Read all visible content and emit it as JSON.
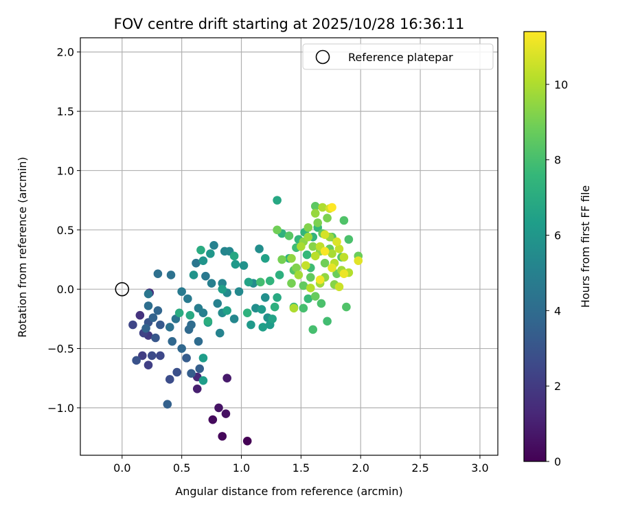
{
  "chart_data": {
    "type": "scatter",
    "title": "FOV centre drift starting at 2025/10/28 16:36:11",
    "xlabel": "Angular distance from reference (arcmin)",
    "ylabel": "Rotation from reference (arcmin)",
    "xlim": [
      -0.35,
      3.15
    ],
    "ylim": [
      -1.4,
      2.12
    ],
    "xticks": [
      "0.0",
      "0.5",
      "1.0",
      "1.5",
      "2.0",
      "2.5",
      "3.0"
    ],
    "xtick_values": [
      0,
      0.5,
      1.0,
      1.5,
      2.0,
      2.5,
      3.0
    ],
    "yticks": [
      "−1.0",
      "−0.5",
      "0.0",
      "0.5",
      "1.0",
      "1.5",
      "2.0"
    ],
    "ytick_values": [
      -1.0,
      -0.5,
      0,
      0.5,
      1.0,
      1.5,
      2.0
    ],
    "grid": true,
    "legend": {
      "label": "Reference platepar",
      "position": "top-right"
    },
    "reference_point": {
      "x": 0.0,
      "y": 0.0
    },
    "colorbar": {
      "label": "Hours from first FF file",
      "min": 0,
      "max": 11.4,
      "ticks": [
        "0",
        "2",
        "4",
        "6",
        "8",
        "10"
      ],
      "tick_values": [
        0,
        2,
        4,
        6,
        8,
        10
      ],
      "colormap": "viridis",
      "colors": [
        "#440154",
        "#482878",
        "#3e4989",
        "#31688e",
        "#26828e",
        "#1f9e89",
        "#35b779",
        "#6ece58",
        "#b5de2b",
        "#fde725"
      ]
    },
    "points": [
      {
        "x": 1.05,
        "y": -1.28,
        "c": 0.0
      },
      {
        "x": 0.84,
        "y": -1.24,
        "c": 0.2
      },
      {
        "x": 0.76,
        "y": -1.1,
        "c": 0.3
      },
      {
        "x": 0.87,
        "y": -1.05,
        "c": 0.5
      },
      {
        "x": 0.81,
        "y": -1.0,
        "c": 0.6
      },
      {
        "x": 0.88,
        "y": -0.75,
        "c": 0.8
      },
      {
        "x": 0.63,
        "y": -0.84,
        "c": 1.0
      },
      {
        "x": 0.63,
        "y": -0.74,
        "c": 1.3
      },
      {
        "x": 0.23,
        "y": -0.03,
        "c": 1.5
      },
      {
        "x": 0.15,
        "y": -0.22,
        "c": 1.7
      },
      {
        "x": 0.22,
        "y": -0.39,
        "c": 1.9
      },
      {
        "x": 0.17,
        "y": -0.56,
        "c": 2.1
      },
      {
        "x": 0.22,
        "y": -0.64,
        "c": 2.2
      },
      {
        "x": 0.18,
        "y": -0.37,
        "c": 2.3
      },
      {
        "x": 0.09,
        "y": -0.3,
        "c": 2.4
      },
      {
        "x": 0.32,
        "y": -0.56,
        "c": 2.5
      },
      {
        "x": 0.25,
        "y": -0.56,
        "c": 2.6
      },
      {
        "x": 0.4,
        "y": -0.76,
        "c": 2.7
      },
      {
        "x": 0.46,
        "y": -0.7,
        "c": 2.8
      },
      {
        "x": 0.12,
        "y": -0.6,
        "c": 2.9
      },
      {
        "x": 0.22,
        "y": -0.28,
        "c": 3.0
      },
      {
        "x": 0.28,
        "y": -0.41,
        "c": 3.1
      },
      {
        "x": 0.32,
        "y": -0.3,
        "c": 3.2
      },
      {
        "x": 0.54,
        "y": -0.58,
        "c": 3.3
      },
      {
        "x": 0.65,
        "y": -0.67,
        "c": 3.4
      },
      {
        "x": 0.58,
        "y": -0.71,
        "c": 3.4
      },
      {
        "x": 0.38,
        "y": -0.97,
        "c": 3.5
      },
      {
        "x": 0.2,
        "y": -0.33,
        "c": 3.6
      },
      {
        "x": 0.26,
        "y": -0.24,
        "c": 3.6
      },
      {
        "x": 0.3,
        "y": -0.18,
        "c": 3.7
      },
      {
        "x": 0.42,
        "y": -0.44,
        "c": 3.8
      },
      {
        "x": 0.5,
        "y": -0.5,
        "c": 3.8
      },
      {
        "x": 0.56,
        "y": -0.34,
        "c": 3.9
      },
      {
        "x": 0.58,
        "y": -0.3,
        "c": 4.0
      },
      {
        "x": 0.64,
        "y": -0.44,
        "c": 4.0
      },
      {
        "x": 0.22,
        "y": -0.14,
        "c": 4.1
      },
      {
        "x": 0.3,
        "y": 0.13,
        "c": 4.2
      },
      {
        "x": 0.41,
        "y": 0.12,
        "c": 4.3
      },
      {
        "x": 0.4,
        "y": -0.32,
        "c": 4.3
      },
      {
        "x": 0.45,
        "y": -0.25,
        "c": 4.4
      },
      {
        "x": 0.22,
        "y": -0.04,
        "c": 4.5
      },
      {
        "x": 0.62,
        "y": 0.22,
        "c": 4.5
      },
      {
        "x": 0.7,
        "y": 0.11,
        "c": 4.6
      },
      {
        "x": 0.5,
        "y": -0.02,
        "c": 4.7
      },
      {
        "x": 0.55,
        "y": -0.08,
        "c": 4.7
      },
      {
        "x": 0.64,
        "y": -0.16,
        "c": 4.8
      },
      {
        "x": 0.68,
        "y": -0.2,
        "c": 4.9
      },
      {
        "x": 0.75,
        "y": 0.05,
        "c": 4.9
      },
      {
        "x": 0.77,
        "y": 0.37,
        "c": 5.0
      },
      {
        "x": 0.8,
        "y": -0.12,
        "c": 5.0
      },
      {
        "x": 0.82,
        "y": -0.37,
        "c": 5.1
      },
      {
        "x": 0.84,
        "y": 0.05,
        "c": 5.2
      },
      {
        "x": 0.86,
        "y": 0.32,
        "c": 5.2
      },
      {
        "x": 0.9,
        "y": 0.32,
        "c": 5.3
      },
      {
        "x": 0.94,
        "y": -0.25,
        "c": 5.3
      },
      {
        "x": 0.98,
        "y": -0.02,
        "c": 5.4
      },
      {
        "x": 0.88,
        "y": -0.03,
        "c": 5.4
      },
      {
        "x": 0.84,
        "y": -0.2,
        "c": 5.5
      },
      {
        "x": 1.1,
        "y": 0.05,
        "c": 5.5
      },
      {
        "x": 1.12,
        "y": -0.16,
        "c": 5.6
      },
      {
        "x": 1.15,
        "y": 0.34,
        "c": 5.6
      },
      {
        "x": 1.2,
        "y": -0.07,
        "c": 5.7
      },
      {
        "x": 1.22,
        "y": -0.24,
        "c": 5.8
      },
      {
        "x": 1.02,
        "y": 0.2,
        "c": 5.8
      },
      {
        "x": 0.68,
        "y": 0.24,
        "c": 5.9
      },
      {
        "x": 0.6,
        "y": 0.12,
        "c": 5.9
      },
      {
        "x": 0.74,
        "y": 0.3,
        "c": 6.0
      },
      {
        "x": 0.72,
        "y": -0.28,
        "c": 6.0
      },
      {
        "x": 0.95,
        "y": 0.21,
        "c": 6.1
      },
      {
        "x": 1.08,
        "y": -0.3,
        "c": 6.1
      },
      {
        "x": 1.17,
        "y": -0.17,
        "c": 6.2
      },
      {
        "x": 1.24,
        "y": -0.3,
        "c": 6.2
      },
      {
        "x": 0.68,
        "y": -0.58,
        "c": 6.3
      },
      {
        "x": 0.68,
        "y": -0.77,
        "c": 6.3
      },
      {
        "x": 1.18,
        "y": -0.32,
        "c": 6.4
      },
      {
        "x": 0.84,
        "y": 0.0,
        "c": 6.4
      },
      {
        "x": 0.88,
        "y": -0.18,
        "c": 6.5
      },
      {
        "x": 1.2,
        "y": 0.26,
        "c": 6.5
      },
      {
        "x": 1.26,
        "y": -0.25,
        "c": 6.6
      },
      {
        "x": 1.06,
        "y": 0.06,
        "c": 6.6
      },
      {
        "x": 1.3,
        "y": 0.75,
        "c": 6.8
      },
      {
        "x": 0.94,
        "y": 0.28,
        "c": 6.8
      },
      {
        "x": 1.3,
        "y": -0.07,
        "c": 6.9
      },
      {
        "x": 0.57,
        "y": -0.22,
        "c": 6.9
      },
      {
        "x": 0.48,
        "y": -0.2,
        "c": 7.0
      },
      {
        "x": 0.66,
        "y": 0.33,
        "c": 7.0
      },
      {
        "x": 0.72,
        "y": -0.27,
        "c": 7.1
      },
      {
        "x": 1.32,
        "y": 0.12,
        "c": 7.2
      },
      {
        "x": 1.28,
        "y": -0.15,
        "c": 7.2
      },
      {
        "x": 1.05,
        "y": -0.2,
        "c": 7.3
      },
      {
        "x": 1.4,
        "y": 0.26,
        "c": 7.3
      },
      {
        "x": 1.34,
        "y": 0.47,
        "c": 7.3
      },
      {
        "x": 1.6,
        "y": 0.44,
        "c": 7.4
      },
      {
        "x": 1.24,
        "y": 0.07,
        "c": 7.4
      },
      {
        "x": 1.53,
        "y": 0.48,
        "c": 7.5
      },
      {
        "x": 1.48,
        "y": 0.42,
        "c": 7.5
      },
      {
        "x": 1.55,
        "y": 0.29,
        "c": 7.6
      },
      {
        "x": 1.64,
        "y": 0.52,
        "c": 7.6
      },
      {
        "x": 1.44,
        "y": -0.15,
        "c": 7.7
      },
      {
        "x": 1.56,
        "y": -0.08,
        "c": 7.7
      },
      {
        "x": 1.46,
        "y": 0.35,
        "c": 7.8
      },
      {
        "x": 1.58,
        "y": 0.18,
        "c": 7.8
      },
      {
        "x": 1.16,
        "y": 0.06,
        "c": 7.9
      },
      {
        "x": 1.72,
        "y": -0.27,
        "c": 7.9
      },
      {
        "x": 1.6,
        "y": -0.34,
        "c": 8.0
      },
      {
        "x": 1.52,
        "y": -0.16,
        "c": 8.0
      },
      {
        "x": 1.67,
        "y": -0.12,
        "c": 8.1
      },
      {
        "x": 1.9,
        "y": 0.42,
        "c": 8.1
      },
      {
        "x": 1.88,
        "y": -0.15,
        "c": 8.2
      },
      {
        "x": 1.86,
        "y": 0.58,
        "c": 8.2
      },
      {
        "x": 1.44,
        "y": 0.16,
        "c": 8.3
      },
      {
        "x": 1.76,
        "y": 0.44,
        "c": 8.3
      },
      {
        "x": 1.84,
        "y": 0.27,
        "c": 8.4
      },
      {
        "x": 1.4,
        "y": 0.45,
        "c": 8.4
      },
      {
        "x": 1.62,
        "y": 0.7,
        "c": 8.5
      },
      {
        "x": 1.68,
        "y": 0.47,
        "c": 8.5
      },
      {
        "x": 1.52,
        "y": 0.03,
        "c": 8.6
      },
      {
        "x": 1.58,
        "y": 0.1,
        "c": 8.6
      },
      {
        "x": 1.62,
        "y": -0.06,
        "c": 8.7
      },
      {
        "x": 1.74,
        "y": 0.34,
        "c": 8.7
      },
      {
        "x": 1.8,
        "y": 0.13,
        "c": 8.8
      },
      {
        "x": 1.98,
        "y": 0.28,
        "c": 8.8
      },
      {
        "x": 1.7,
        "y": 0.22,
        "c": 8.9
      },
      {
        "x": 1.3,
        "y": 0.5,
        "c": 8.9
      },
      {
        "x": 1.34,
        "y": 0.25,
        "c": 9.0
      },
      {
        "x": 1.42,
        "y": 0.05,
        "c": 9.0
      },
      {
        "x": 1.64,
        "y": 0.56,
        "c": 9.1
      },
      {
        "x": 1.72,
        "y": 0.6,
        "c": 9.1
      },
      {
        "x": 1.46,
        "y": 0.18,
        "c": 9.2
      },
      {
        "x": 1.56,
        "y": 0.52,
        "c": 9.2
      },
      {
        "x": 1.6,
        "y": 0.36,
        "c": 9.3
      },
      {
        "x": 1.78,
        "y": 0.04,
        "c": 9.3
      },
      {
        "x": 1.66,
        "y": 0.32,
        "c": 9.4
      },
      {
        "x": 1.52,
        "y": 0.4,
        "c": 9.4
      },
      {
        "x": 1.7,
        "y": 0.1,
        "c": 9.5
      },
      {
        "x": 1.42,
        "y": 0.26,
        "c": 9.5
      },
      {
        "x": 1.74,
        "y": 0.44,
        "c": 9.6
      },
      {
        "x": 1.62,
        "y": 0.64,
        "c": 9.6
      },
      {
        "x": 1.56,
        "y": 0.44,
        "c": 9.7
      },
      {
        "x": 1.66,
        "y": 0.05,
        "c": 9.7
      },
      {
        "x": 1.48,
        "y": 0.12,
        "c": 9.8
      },
      {
        "x": 1.84,
        "y": 0.16,
        "c": 9.8
      },
      {
        "x": 1.76,
        "y": 0.3,
        "c": 9.9
      },
      {
        "x": 1.5,
        "y": 0.36,
        "c": 9.9
      },
      {
        "x": 1.44,
        "y": -0.16,
        "c": 10.0
      },
      {
        "x": 1.68,
        "y": 0.69,
        "c": 10.0
      },
      {
        "x": 1.58,
        "y": 0.01,
        "c": 10.1
      },
      {
        "x": 1.9,
        "y": 0.14,
        "c": 10.1
      },
      {
        "x": 1.78,
        "y": 0.22,
        "c": 10.2
      },
      {
        "x": 1.62,
        "y": 0.28,
        "c": 10.2
      },
      {
        "x": 1.86,
        "y": 0.27,
        "c": 10.3
      },
      {
        "x": 1.66,
        "y": 0.36,
        "c": 10.3
      },
      {
        "x": 1.82,
        "y": 0.34,
        "c": 10.4
      },
      {
        "x": 1.54,
        "y": 0.2,
        "c": 10.4
      },
      {
        "x": 1.82,
        "y": 0.02,
        "c": 10.5
      },
      {
        "x": 1.74,
        "y": 0.68,
        "c": 10.6
      },
      {
        "x": 1.7,
        "y": 0.46,
        "c": 10.7
      },
      {
        "x": 1.8,
        "y": 0.4,
        "c": 10.8
      },
      {
        "x": 1.98,
        "y": 0.24,
        "c": 10.9
      },
      {
        "x": 1.76,
        "y": 0.18,
        "c": 11.0
      },
      {
        "x": 1.86,
        "y": 0.13,
        "c": 11.1
      },
      {
        "x": 1.66,
        "y": 0.08,
        "c": 11.2
      },
      {
        "x": 1.7,
        "y": 0.32,
        "c": 11.3
      },
      {
        "x": 1.76,
        "y": 0.69,
        "c": 11.4
      }
    ]
  }
}
